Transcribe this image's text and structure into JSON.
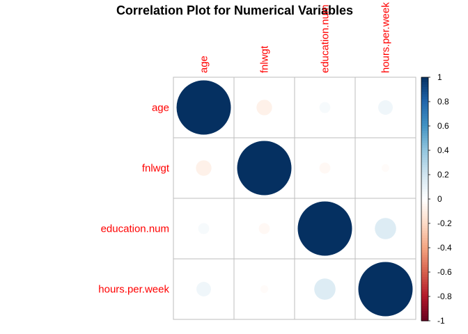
{
  "chart_data": {
    "type": "heatmap",
    "title": "Correlation Plot for Numerical Variables",
    "variables": [
      "age",
      "fnlwgt",
      "education.num",
      "hours.per.week"
    ],
    "matrix": [
      [
        1.0,
        -0.08,
        0.04,
        0.07
      ],
      [
        -0.08,
        1.0,
        -0.04,
        -0.02
      ],
      [
        0.04,
        -0.04,
        1.0,
        0.15
      ],
      [
        0.07,
        -0.02,
        0.15,
        1.0
      ]
    ],
    "colorbar": {
      "range": [
        -1,
        1
      ],
      "ticks": [
        "1",
        "0.8",
        "0.6",
        "0.4",
        "0.2",
        "0",
        "-0.2",
        "-0.4",
        "-0.6",
        "-0.8",
        "-1"
      ]
    },
    "label_color": "#FF0000",
    "palette": [
      "#67001F",
      "#B2182B",
      "#D6604D",
      "#F4A582",
      "#FDDBC7",
      "#FFFFFF",
      "#D1E5F0",
      "#92C5DE",
      "#4393C3",
      "#2166AC",
      "#053061"
    ]
  }
}
